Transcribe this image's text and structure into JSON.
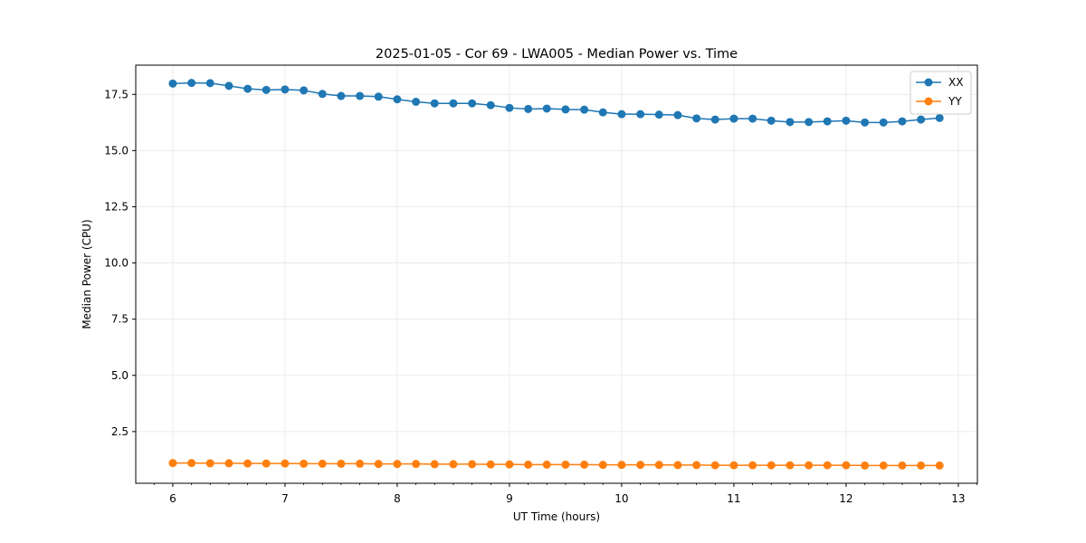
{
  "chart_data": {
    "type": "line",
    "title": "2025-01-05 - Cor 69 - LWA005 - Median Power vs. Time",
    "xlabel": "UT Time (hours)",
    "ylabel": "Median Power (CPU)",
    "xlim": [
      5.67,
      13.17
    ],
    "ylim": [
      0.2,
      18.8
    ],
    "xticks": [
      6,
      7,
      8,
      9,
      10,
      11,
      12,
      13
    ],
    "xtick_labels": [
      "6",
      "7",
      "8",
      "9",
      "10",
      "11",
      "12",
      "13"
    ],
    "yticks": [
      2.5,
      5.0,
      7.5,
      10.0,
      12.5,
      15.0,
      17.5
    ],
    "ytick_labels": [
      "2.5",
      "5.0",
      "7.5",
      "10.0",
      "12.5",
      "15.0",
      "17.5"
    ],
    "grid": true,
    "legend_position": "top-right",
    "x": [
      6.0,
      6.167,
      6.333,
      6.5,
      6.667,
      6.833,
      7.0,
      7.167,
      7.333,
      7.5,
      7.667,
      7.833,
      8.0,
      8.167,
      8.333,
      8.5,
      8.667,
      8.833,
      9.0,
      9.167,
      9.333,
      9.5,
      9.667,
      9.833,
      10.0,
      10.167,
      10.333,
      10.5,
      10.667,
      10.833,
      11.0,
      11.167,
      11.333,
      11.5,
      11.667,
      11.833,
      12.0,
      12.167,
      12.333,
      12.5,
      12.667,
      12.833
    ],
    "series": [
      {
        "name": "XX",
        "color": "#1f77b4",
        "values": [
          17.98,
          18.01,
          18.0,
          17.88,
          17.75,
          17.7,
          17.72,
          17.68,
          17.52,
          17.43,
          17.43,
          17.4,
          17.28,
          17.17,
          17.1,
          17.1,
          17.1,
          17.02,
          16.9,
          16.85,
          16.87,
          16.83,
          16.82,
          16.7,
          16.62,
          16.62,
          16.6,
          16.58,
          16.43,
          16.38,
          16.42,
          16.42,
          16.33,
          16.27,
          16.27,
          16.3,
          16.33,
          16.25,
          16.25,
          16.3,
          16.38,
          16.45
        ]
      },
      {
        "name": "YY",
        "color": "#ff7f0e",
        "values": [
          1.1,
          1.1,
          1.09,
          1.09,
          1.08,
          1.08,
          1.08,
          1.07,
          1.07,
          1.07,
          1.07,
          1.06,
          1.06,
          1.06,
          1.05,
          1.05,
          1.05,
          1.04,
          1.04,
          1.03,
          1.03,
          1.03,
          1.03,
          1.02,
          1.02,
          1.02,
          1.02,
          1.01,
          1.01,
          1.0,
          1.0,
          1.0,
          1.0,
          1.0,
          1.0,
          1.0,
          1.0,
          0.99,
          0.99,
          0.99,
          0.99,
          0.99
        ]
      }
    ]
  }
}
